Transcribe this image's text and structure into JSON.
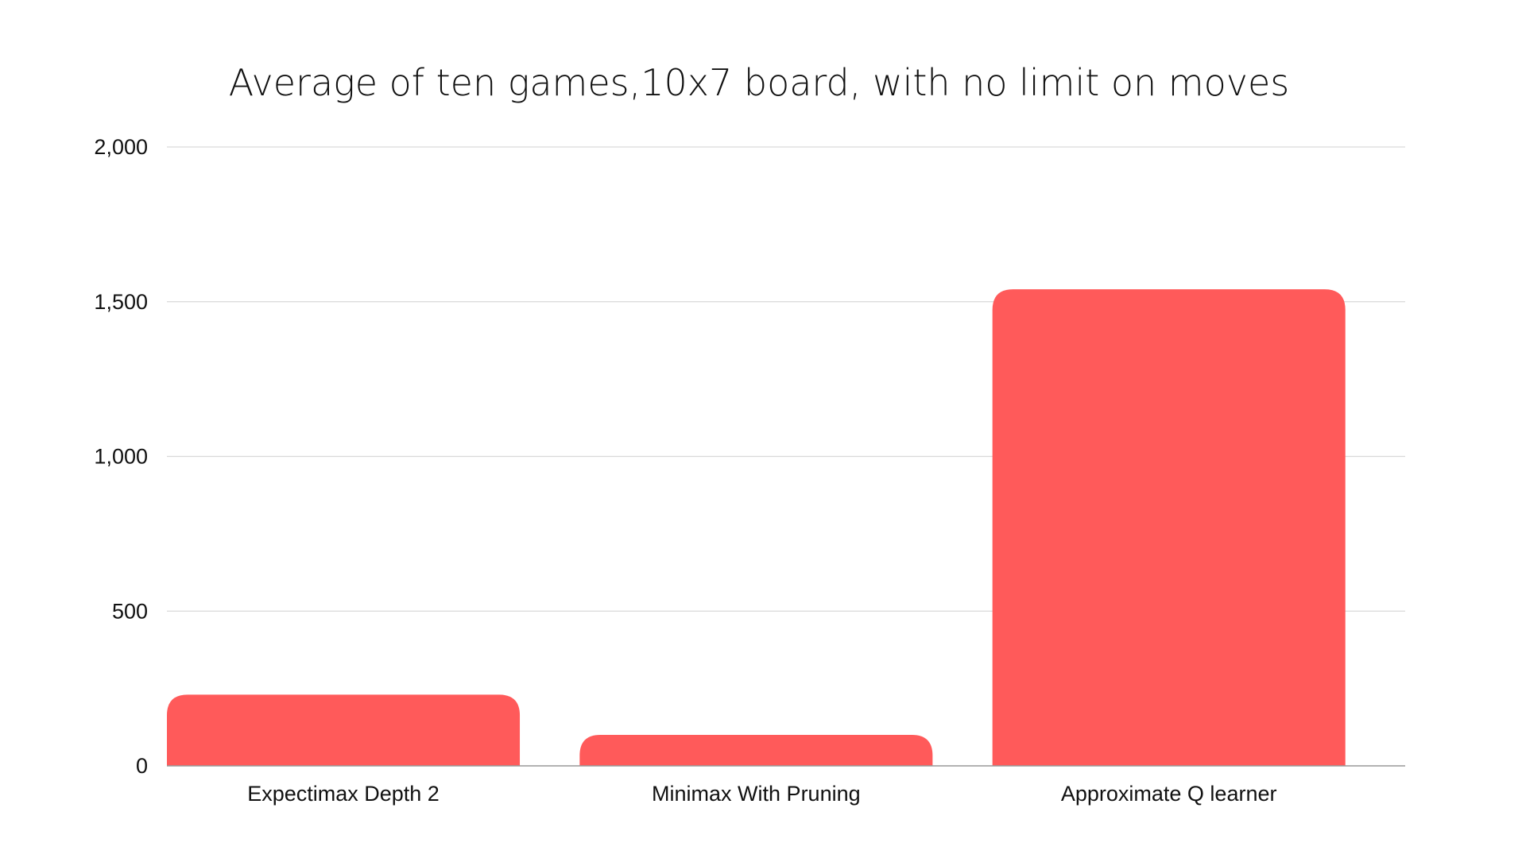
{
  "chart_data": {
    "type": "bar",
    "title": "Average of ten games,10x7 board, with no limit on moves",
    "xlabel": "",
    "ylabel": "",
    "categories": [
      "Expectimax Depth 2",
      "Minimax With Pruning",
      "Approximate Q learner"
    ],
    "values": [
      230,
      100,
      1540
    ],
    "ylim": [
      0,
      2000
    ],
    "yticks": [
      0,
      500,
      1000,
      1500,
      2000
    ],
    "ytick_labels": [
      "0",
      "500",
      "1,000",
      "1,500",
      "2,000"
    ],
    "grid": true,
    "legend": "none",
    "colors": {
      "bar": "#ff5a5a",
      "grid": "#d9d9d9",
      "baseline": "#999999",
      "text": "#111111"
    }
  }
}
